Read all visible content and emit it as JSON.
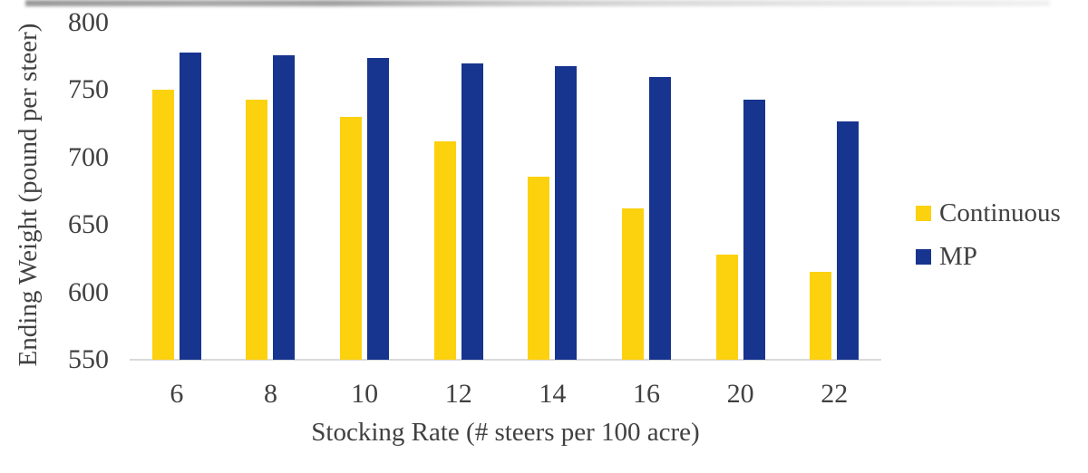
{
  "chart_data": {
    "type": "bar",
    "title": "",
    "categories": [
      "6",
      "8",
      "10",
      "12",
      "14",
      "16",
      "20",
      "22"
    ],
    "series": [
      {
        "name": "Continuous",
        "color": "#FCD10E",
        "values": [
          750,
          743,
          730,
          712,
          686,
          662,
          628,
          615
        ]
      },
      {
        "name": "MP",
        "color": "#17348F",
        "values": [
          778,
          776,
          774,
          770,
          768,
          760,
          743,
          727
        ]
      }
    ],
    "xlabel": "Stocking Rate (# steers per 100 acre)",
    "ylabel": "Ending Weight (pound per steer)",
    "ylim": [
      550,
      800
    ],
    "yticks": [
      550,
      600,
      650,
      700,
      750,
      800
    ],
    "grid": false,
    "legend_position": "right",
    "axis_line_color": "#D9D9D9",
    "text_color": "#414141"
  }
}
